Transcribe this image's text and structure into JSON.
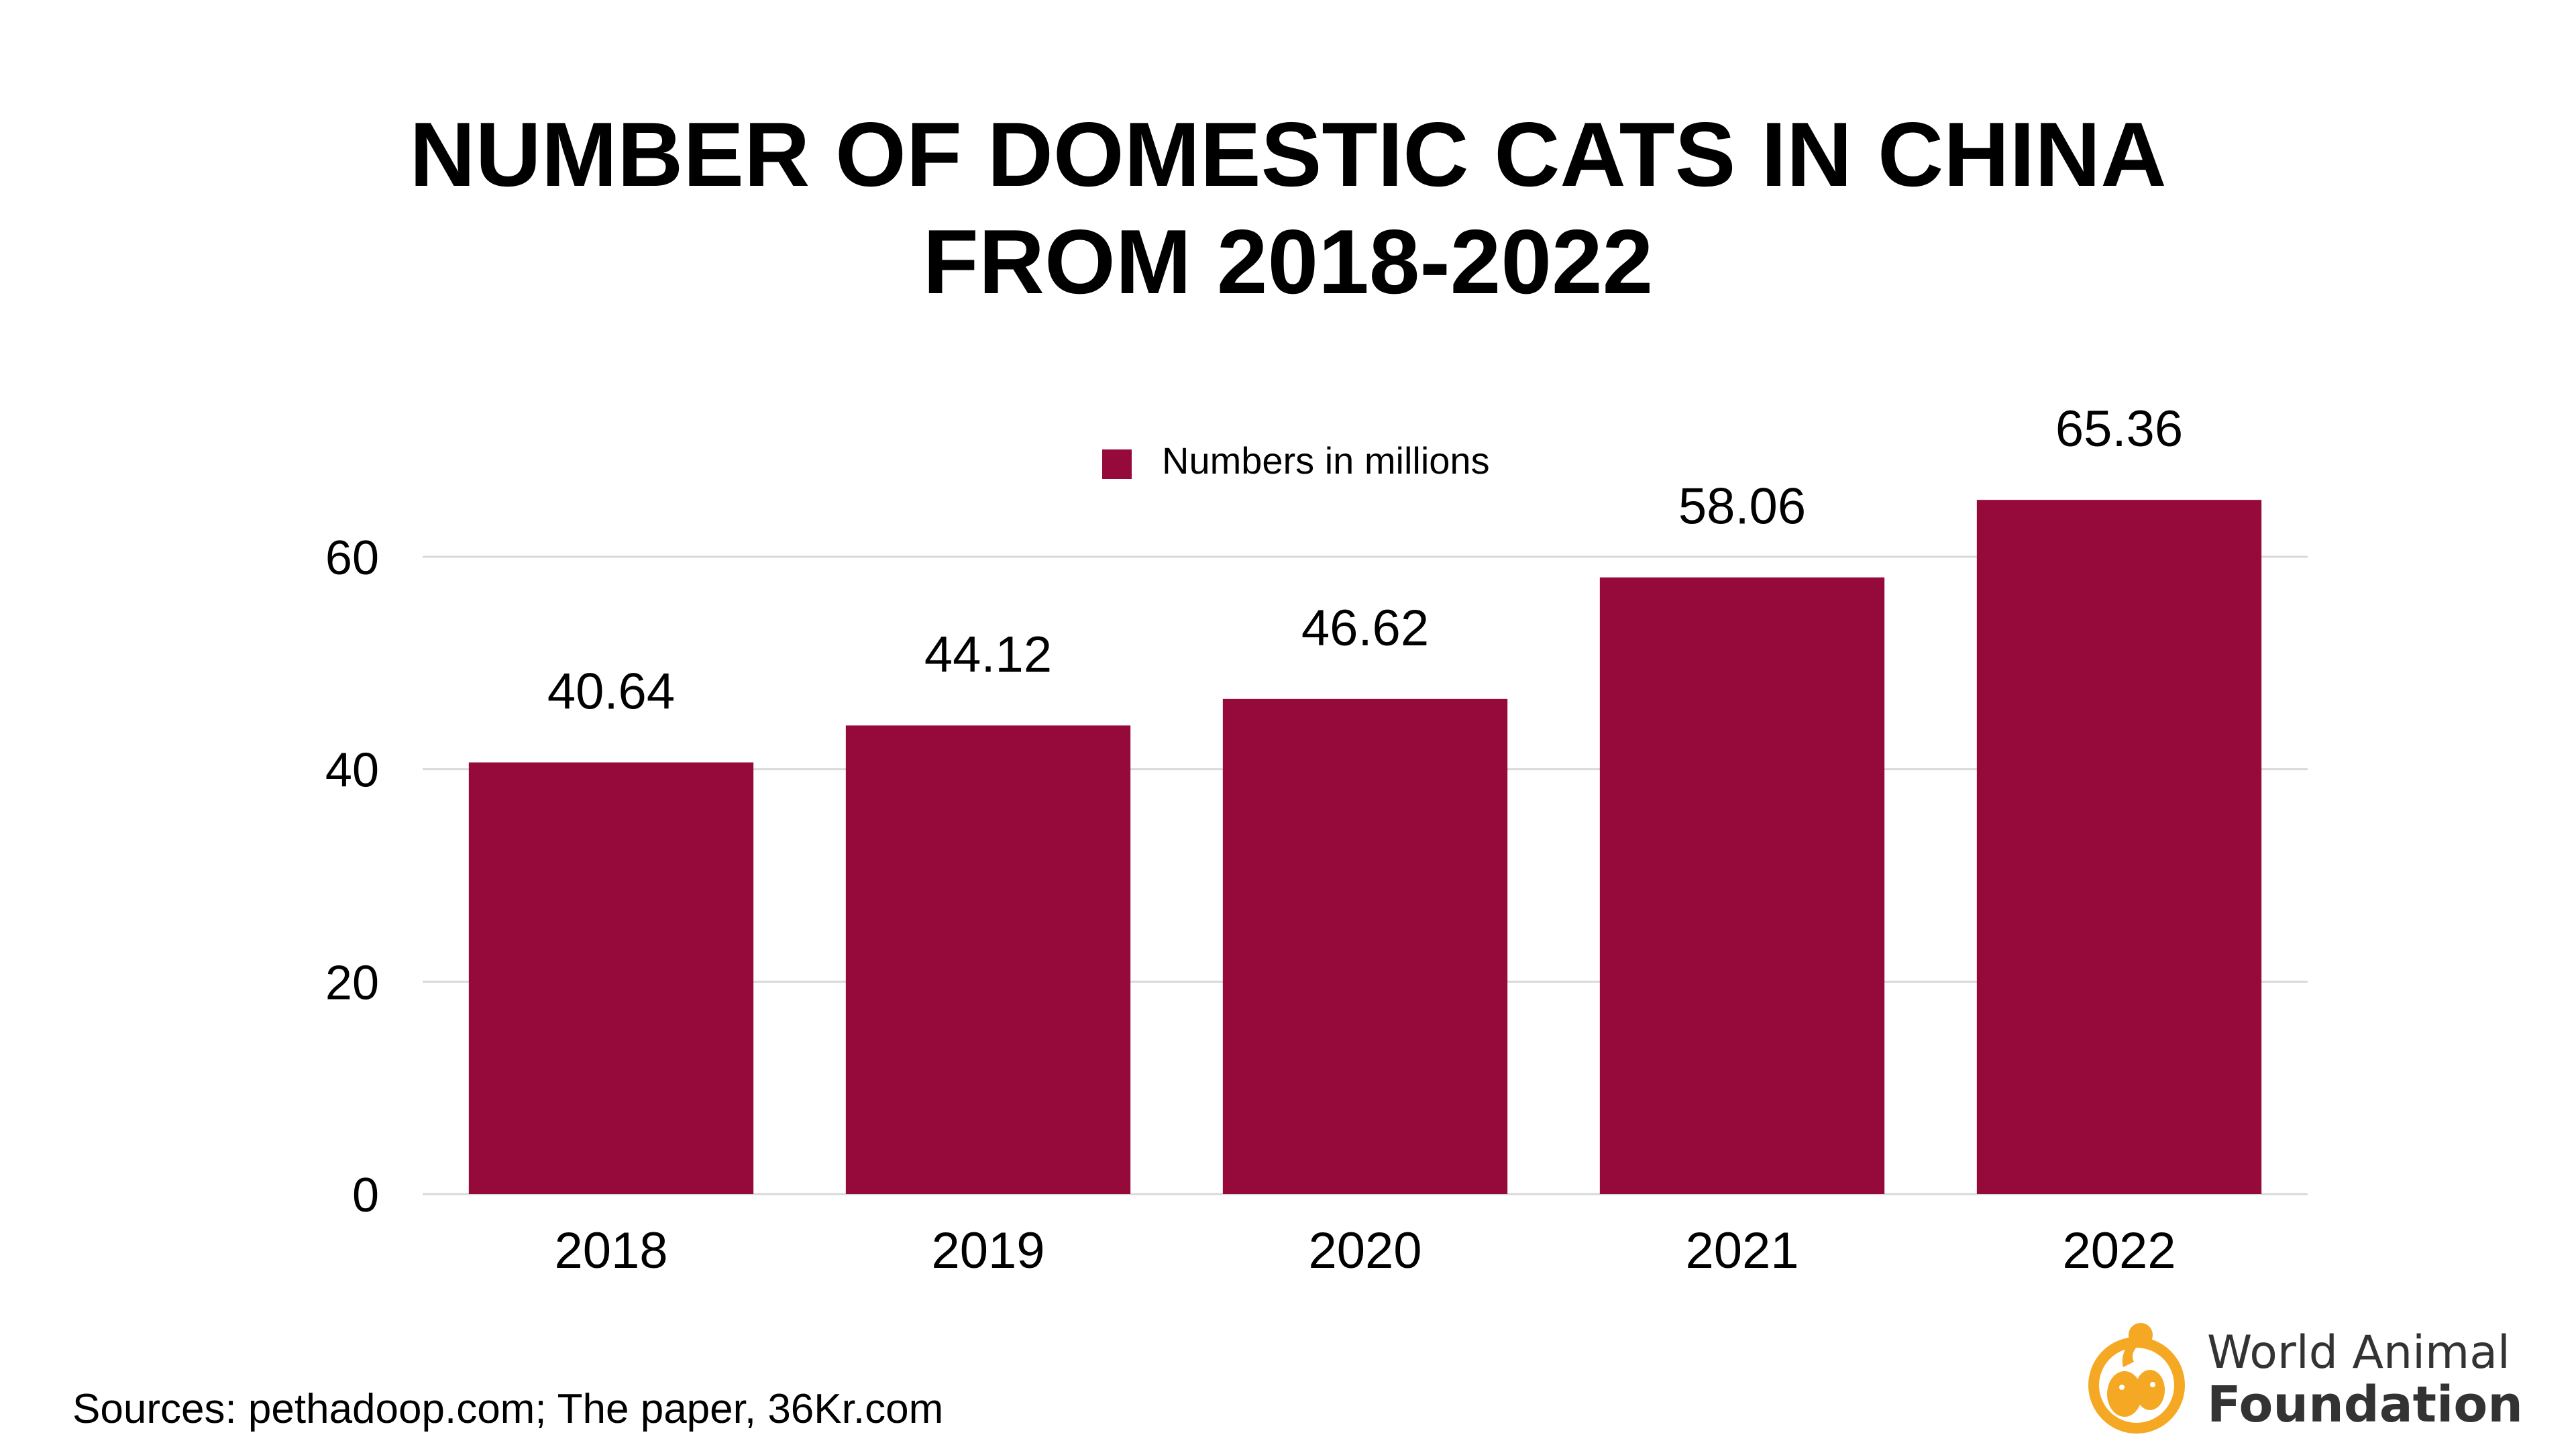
{
  "title": {
    "line1": "NUMBER OF DOMESTIC CATS IN CHINA",
    "line2": "FROM 2018-2022"
  },
  "chart_data": {
    "type": "bar",
    "title": "NUMBER OF DOMESTIC CATS IN CHINA FROM 2018-2022",
    "categories": [
      "2018",
      "2019",
      "2020",
      "2021",
      "2022"
    ],
    "series": [
      {
        "name": "Numbers in millions",
        "values": [
          40.64,
          44.12,
          46.62,
          58.06,
          65.36
        ],
        "color": "#960a3b"
      }
    ],
    "data_labels": [
      "40.64",
      "44.12",
      "46.62",
      "58.06",
      "65.36"
    ],
    "ylim": [
      0,
      60
    ],
    "yticks": [
      "0",
      "20",
      "40",
      "60"
    ],
    "xlabel": "",
    "ylabel": "",
    "grid": true,
    "legend_position": "top-center"
  },
  "colors": {
    "bar": "#960a3b",
    "grid": "#d9d9d9",
    "logo_accent": "#f5a823",
    "logo_text": "#333333"
  },
  "footer": {
    "sources": "Sources: pethadoop.com; The paper, 36Kr.com"
  },
  "logo": {
    "icon": "paw-dog-cat-icon",
    "line1": "World Animal",
    "line2": "Foundation"
  }
}
